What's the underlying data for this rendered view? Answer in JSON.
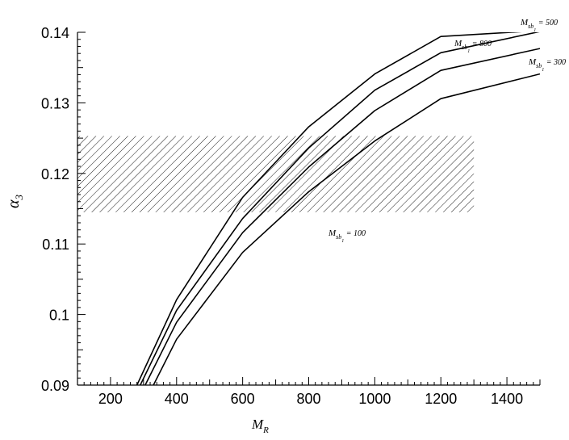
{
  "chart_data": {
    "type": "line",
    "xlabel": "M",
    "xlabel_sub": "R",
    "ylabel": "α",
    "ylabel_sub": "3",
    "xlim": [
      100,
      1500
    ],
    "ylim": [
      0.09,
      0.14
    ],
    "x_ticks": [
      200,
      400,
      600,
      800,
      1000,
      1200,
      1400
    ],
    "x_tick_labels": [
      "200",
      "400",
      "600",
      "800",
      "1000",
      "1200",
      "1400"
    ],
    "y_ticks": [
      0.09,
      0.1,
      0.11,
      0.12,
      0.13,
      0.14
    ],
    "y_tick_labels": [
      "0.09",
      "0.1",
      "0.11",
      "0.12",
      "0.13",
      "0.14"
    ],
    "grid": false,
    "band": {
      "x": [
        100,
        1300
      ],
      "y": [
        0.1145,
        0.1253
      ],
      "pattern": "diagonal-hatch"
    },
    "series": [
      {
        "name": "M_sb1 = 800",
        "label_main": "M",
        "label_sub": "sb",
        "label_subsub": "1",
        "label_value": "= 800",
        "x": [
          280,
          400,
          600,
          800,
          1000,
          1200,
          1450
        ],
        "y": [
          0.09,
          0.1021,
          0.1166,
          0.1266,
          0.1341,
          0.1394,
          0.1401
        ]
      },
      {
        "name": "M_sb1 = 500",
        "label_main": "M",
        "label_sub": "sb",
        "label_subsub": "1",
        "label_value": "= 500",
        "x": [
          290,
          400,
          600,
          800,
          1000,
          1200,
          1500
        ],
        "y": [
          0.09,
          0.1006,
          0.1136,
          0.1236,
          0.1318,
          0.1371,
          0.1401
        ]
      },
      {
        "name": "M_sb1 = 300",
        "label_main": "M",
        "label_sub": "sb",
        "label_subsub": "1",
        "label_value": "= 300",
        "x": [
          305,
          400,
          600,
          800,
          1000,
          1200,
          1500
        ],
        "y": [
          0.09,
          0.0989,
          0.1116,
          0.1209,
          0.1289,
          0.1346,
          0.1377
        ]
      },
      {
        "name": "M_sb1 = 100",
        "label_main": "M",
        "label_sub": "sb",
        "label_subsub": "1",
        "label_value": "= 100",
        "x": [
          330,
          400,
          600,
          800,
          1000,
          1200,
          1500
        ],
        "y": [
          0.09,
          0.0965,
          0.1088,
          0.1174,
          0.1246,
          0.1306,
          0.1341
        ]
      }
    ]
  }
}
